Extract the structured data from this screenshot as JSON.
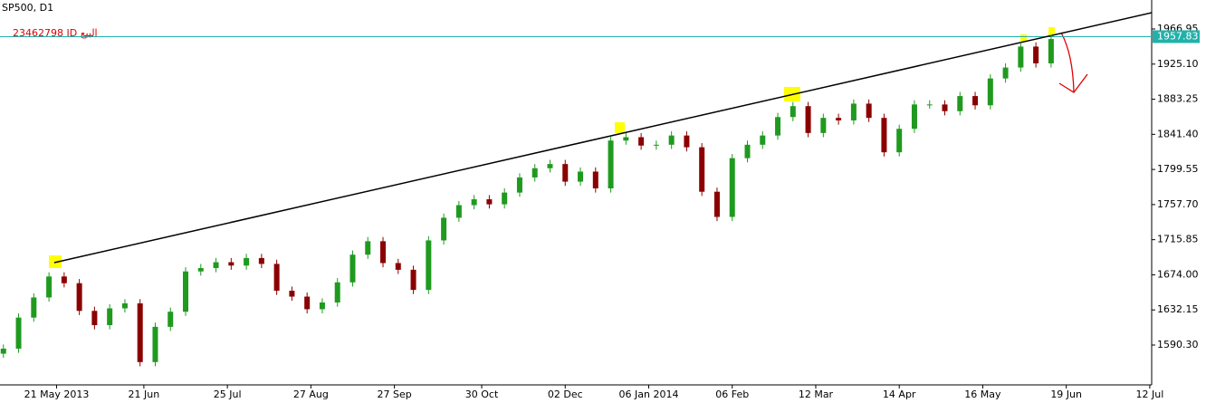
{
  "chart_data": {
    "type": "candlestick",
    "title": "SP500, D1",
    "annotation": "23462798 ID البيع",
    "up_color": "#1f9a1f",
    "down_color": "#8b0000",
    "x": [
      0,
      4,
      8,
      12,
      16,
      20,
      24,
      28,
      32,
      36,
      40,
      44,
      48,
      52,
      56,
      60,
      64,
      68,
      72,
      76,
      80,
      84,
      88,
      92,
      96,
      100,
      104,
      108,
      112,
      116,
      120,
      124,
      128,
      132,
      136,
      140,
      144,
      148,
      152,
      156,
      160,
      164,
      168,
      172,
      176,
      180,
      184,
      188,
      192,
      196,
      200,
      204,
      208,
      212,
      216,
      220,
      224,
      228,
      232,
      236,
      240,
      244,
      248,
      252,
      256,
      260,
      264,
      268,
      272,
      276
    ],
    "open": [
      1580,
      1586,
      1623,
      1647,
      1672,
      1664,
      1631,
      1614,
      1634,
      1640,
      1570,
      1612,
      1630,
      1678,
      1682,
      1689,
      1685,
      1694,
      1687,
      1655,
      1648,
      1633,
      1641,
      1665,
      1698,
      1714,
      1688,
      1680,
      1656,
      1715,
      1742,
      1757,
      1764,
      1758,
      1772,
      1790,
      1801,
      1806,
      1785,
      1797,
      1777,
      1834,
      1838,
      1828,
      1829,
      1840,
      1826,
      1773,
      1743,
      1813,
      1829,
      1840,
      1862,
      1875,
      1843,
      1861,
      1858,
      1878,
      1861,
      1820,
      1848,
      1877,
      1877,
      1869,
      1887,
      1876,
      1908,
      1921,
      1946,
      1926
    ],
    "high": [
      1591,
      1628,
      1652,
      1677,
      1677,
      1669,
      1636,
      1639,
      1645,
      1645,
      1617,
      1635,
      1683,
      1687,
      1694,
      1694,
      1699,
      1699,
      1692,
      1660,
      1653,
      1646,
      1670,
      1703,
      1719,
      1719,
      1693,
      1685,
      1720,
      1747,
      1762,
      1769,
      1769,
      1777,
      1795,
      1806,
      1811,
      1811,
      1802,
      1802,
      1839,
      1843,
      1843,
      1834,
      1845,
      1845,
      1831,
      1778,
      1818,
      1834,
      1845,
      1867,
      1880,
      1880,
      1866,
      1866,
      1883,
      1883,
      1866,
      1853,
      1882,
      1882,
      1882,
      1892,
      1892,
      1913,
      1926,
      1951,
      1951,
      1960
    ],
    "low": [
      1575,
      1581,
      1618,
      1642,
      1659,
      1626,
      1609,
      1609,
      1629,
      1565,
      1565,
      1607,
      1625,
      1673,
      1677,
      1680,
      1680,
      1682,
      1650,
      1643,
      1628,
      1628,
      1636,
      1660,
      1693,
      1683,
      1675,
      1651,
      1651,
      1710,
      1737,
      1752,
      1753,
      1753,
      1767,
      1785,
      1796,
      1780,
      1780,
      1772,
      1772,
      1829,
      1823,
      1823,
      1824,
      1821,
      1768,
      1738,
      1738,
      1808,
      1824,
      1835,
      1857,
      1838,
      1838,
      1853,
      1853,
      1856,
      1815,
      1815,
      1843,
      1872,
      1864,
      1864,
      1871,
      1871,
      1903,
      1916,
      1921,
      1921
    ],
    "close": [
      1586,
      1623,
      1647,
      1672,
      1664,
      1631,
      1614,
      1634,
      1640,
      1570,
      1612,
      1630,
      1678,
      1682,
      1689,
      1685,
      1694,
      1687,
      1655,
      1648,
      1633,
      1641,
      1665,
      1698,
      1714,
      1688,
      1680,
      1656,
      1715,
      1742,
      1757,
      1764,
      1758,
      1772,
      1790,
      1801,
      1806,
      1785,
      1797,
      1777,
      1834,
      1838,
      1828,
      1829,
      1840,
      1826,
      1773,
      1743,
      1813,
      1829,
      1840,
      1862,
      1875,
      1843,
      1861,
      1858,
      1878,
      1861,
      1820,
      1848,
      1877,
      1877,
      1869,
      1887,
      1876,
      1908,
      1921,
      1946,
      1926,
      1955
    ],
    "xlim": [
      -0.9,
      302.5
    ],
    "ylim": [
      1542.8,
      2001.5
    ],
    "yticks": [
      {
        "value": 1590.3,
        "label": "1590.30"
      },
      1632.15,
      {
        "value": 1674,
        "label": "1674.00"
      },
      1715.85,
      {
        "value": 1757.7,
        "label": "1757.70"
      },
      1799.55,
      {
        "value": 1841.4,
        "label": "1841.40"
      },
      1883.25,
      {
        "value": 1925.1,
        "label": "1925.10"
      },
      1966.95
    ],
    "xticks": [
      {
        "value": 14,
        "label": "21 May 2013"
      },
      {
        "value": 37,
        "label": "21 Jun"
      },
      {
        "value": 59,
        "label": "25 Jul"
      },
      {
        "value": 81,
        "label": "27 Aug"
      },
      {
        "value": 103,
        "label": "27 Sep"
      },
      {
        "value": 126,
        "label": "30 Oct"
      },
      {
        "value": 148,
        "label": "02 Dec"
      },
      {
        "value": 170,
        "label": "06 Jan 2014"
      },
      {
        "value": 192,
        "label": "06 Feb"
      },
      {
        "value": 214,
        "label": "12 Mar"
      },
      {
        "value": 236,
        "label": "14 Apr"
      },
      {
        "value": 258,
        "label": "16 May"
      },
      {
        "value": 280,
        "label": "19 Jun"
      },
      {
        "value": 302,
        "label": "12 Jul"
      }
    ],
    "hline": {
      "value": 1957.83,
      "color": "#20b2aa"
    },
    "trendline": {
      "x": [
        13.4,
        302.5
      ],
      "y": [
        1688.5,
        1986.4
      ],
      "color": "#000000"
    }
  }
}
